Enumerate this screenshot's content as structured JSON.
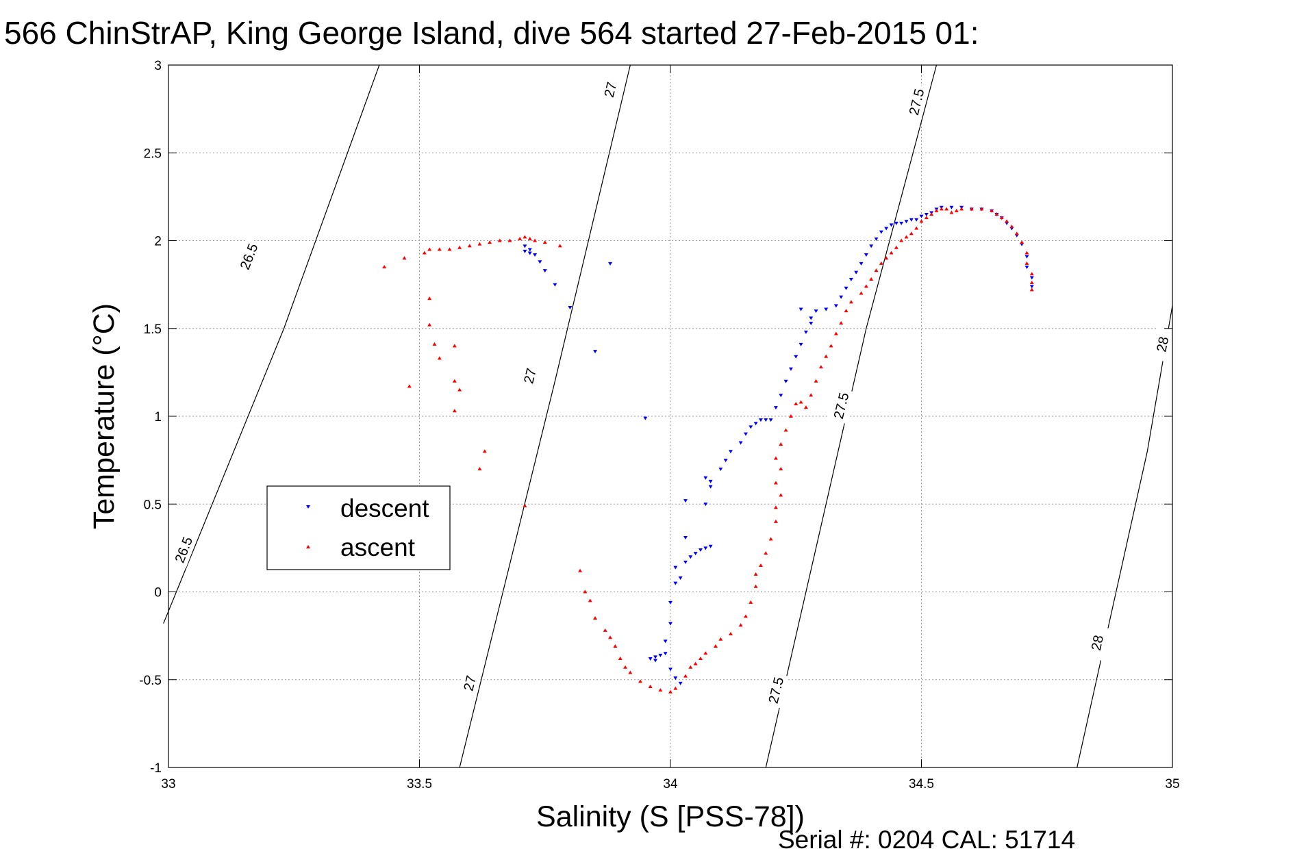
{
  "chart_data": {
    "type": "scatter",
    "title": "566 ChinStrAP, King George Island, dive 564 started 27-Feb-2015 01:",
    "xlabel": "Salinity (S [PSS-78])",
    "ylabel": "Temperature (°C)",
    "footer": "Serial #: 0204  CAL: 51714",
    "xlim": [
      33,
      35
    ],
    "ylim": [
      -1,
      3
    ],
    "xticks": [
      33,
      33.5,
      34,
      34.5,
      35
    ],
    "yticks": [
      -1,
      -0.5,
      0,
      0.5,
      1,
      1.5,
      2,
      2.5,
      3
    ],
    "xtick_labels": [
      "33",
      "33.5",
      "34",
      "34.5",
      "35"
    ],
    "ytick_labels": [
      "-1",
      "-0.5",
      "0",
      "0.5",
      "1",
      "1.5",
      "2",
      "2.5",
      "3"
    ],
    "grid": true,
    "legend": {
      "position": "left-middle",
      "entries": [
        {
          "name": "descent",
          "color": "#0000ff",
          "marker": "triangle-down"
        },
        {
          "name": "ascent",
          "color": "#ff0000",
          "marker": "triangle-up"
        }
      ]
    },
    "contours": [
      {
        "label": "26.5",
        "points": [
          [
            32.99,
            -0.18
          ],
          [
            33.23,
            1.5
          ],
          [
            33.42,
            3.0
          ]
        ],
        "labels_at": [
          [
            33.03,
            0.24
          ],
          [
            33.16,
            1.91
          ]
        ]
      },
      {
        "label": "27",
        "points": [
          [
            33.58,
            -1.0
          ],
          [
            33.77,
            1.2
          ],
          [
            33.92,
            3.0
          ]
        ],
        "labels_at": [
          [
            33.6,
            -0.52
          ],
          [
            33.72,
            1.23
          ],
          [
            33.88,
            2.86
          ]
        ]
      },
      {
        "label": "27.5",
        "points": [
          [
            34.19,
            -1.0
          ],
          [
            34.39,
            1.5
          ],
          [
            34.53,
            3.0
          ]
        ],
        "labels_at": [
          [
            34.21,
            -0.56
          ],
          [
            34.34,
            1.06
          ],
          [
            34.49,
            2.79
          ]
        ]
      },
      {
        "label": "28",
        "points": [
          [
            34.81,
            -1.0
          ],
          [
            34.95,
            0.8
          ],
          [
            35.0,
            1.63
          ]
        ],
        "labels_at": [
          [
            34.85,
            -0.29
          ],
          [
            34.98,
            1.41
          ]
        ]
      }
    ],
    "series": [
      {
        "name": "descent",
        "color": "#0000ff",
        "marker": "triangle-down",
        "points": [
          [
            33.71,
            1.97
          ],
          [
            33.72,
            1.95
          ],
          [
            33.71,
            1.94
          ],
          [
            33.72,
            1.93
          ],
          [
            33.73,
            1.92
          ],
          [
            33.74,
            1.88
          ],
          [
            33.75,
            1.83
          ],
          [
            33.77,
            1.75
          ],
          [
            33.8,
            1.62
          ],
          [
            33.85,
            1.37
          ],
          [
            33.88,
            1.87
          ],
          [
            33.95,
            0.99
          ],
          [
            33.96,
            -0.38
          ],
          [
            33.97,
            -0.37
          ],
          [
            33.98,
            -0.36
          ],
          [
            33.99,
            -0.35
          ],
          [
            33.97,
            -0.39
          ],
          [
            33.99,
            -0.28
          ],
          [
            34.0,
            -0.18
          ],
          [
            34.0,
            -0.06
          ],
          [
            34.01,
            0.05
          ],
          [
            34.01,
            0.14
          ],
          [
            34.0,
            -0.44
          ],
          [
            34.01,
            -0.49
          ],
          [
            34.02,
            -0.52
          ],
          [
            34.02,
            0.08
          ],
          [
            34.03,
            0.17
          ],
          [
            34.03,
            0.31
          ],
          [
            34.04,
            0.2
          ],
          [
            34.05,
            0.22
          ],
          [
            34.06,
            0.24
          ],
          [
            34.07,
            0.25
          ],
          [
            34.08,
            0.26
          ],
          [
            34.03,
            0.52
          ],
          [
            34.07,
            0.5
          ],
          [
            34.08,
            0.6
          ],
          [
            34.07,
            0.65
          ],
          [
            34.08,
            0.63
          ],
          [
            34.1,
            0.7
          ],
          [
            34.11,
            0.75
          ],
          [
            34.12,
            0.8
          ],
          [
            34.14,
            0.85
          ],
          [
            34.15,
            0.9
          ],
          [
            34.16,
            0.94
          ],
          [
            34.17,
            0.96
          ],
          [
            34.18,
            0.98
          ],
          [
            34.19,
            0.98
          ],
          [
            34.2,
            0.98
          ],
          [
            34.21,
            1.05
          ],
          [
            34.22,
            1.12
          ],
          [
            34.23,
            1.2
          ],
          [
            34.24,
            1.27
          ],
          [
            34.25,
            1.34
          ],
          [
            34.26,
            1.41
          ],
          [
            34.27,
            1.48
          ],
          [
            34.28,
            1.53
          ],
          [
            34.28,
            1.56
          ],
          [
            34.26,
            1.61
          ],
          [
            34.29,
            1.6
          ],
          [
            34.31,
            1.61
          ],
          [
            34.33,
            1.63
          ],
          [
            34.34,
            1.68
          ],
          [
            34.35,
            1.73
          ],
          [
            34.36,
            1.78
          ],
          [
            34.37,
            1.82
          ],
          [
            34.38,
            1.87
          ],
          [
            34.39,
            1.92
          ],
          [
            34.4,
            1.97
          ],
          [
            34.41,
            2.01
          ],
          [
            34.42,
            2.05
          ],
          [
            34.43,
            2.07
          ],
          [
            34.44,
            2.09
          ],
          [
            34.45,
            2.1
          ],
          [
            34.46,
            2.1
          ],
          [
            34.47,
            2.11
          ],
          [
            34.48,
            2.12
          ],
          [
            34.49,
            2.12
          ],
          [
            34.5,
            2.14
          ],
          [
            34.51,
            2.15
          ],
          [
            34.52,
            2.16
          ],
          [
            34.53,
            2.18
          ],
          [
            34.54,
            2.19
          ],
          [
            34.56,
            2.19
          ],
          [
            34.58,
            2.19
          ],
          [
            34.6,
            2.18
          ],
          [
            34.62,
            2.18
          ],
          [
            34.64,
            2.17
          ],
          [
            34.65,
            2.15
          ],
          [
            34.66,
            2.13
          ],
          [
            34.67,
            2.1
          ],
          [
            34.68,
            2.07
          ],
          [
            34.69,
            2.03
          ],
          [
            34.7,
            1.98
          ],
          [
            34.71,
            1.91
          ],
          [
            34.71,
            1.85
          ],
          [
            34.72,
            1.79
          ],
          [
            34.72,
            1.74
          ]
        ]
      },
      {
        "name": "ascent",
        "color": "#ff0000",
        "marker": "triangle-up",
        "points": [
          [
            33.43,
            1.85
          ],
          [
            33.47,
            1.9
          ],
          [
            33.48,
            1.17
          ],
          [
            33.51,
            1.93
          ],
          [
            33.52,
            1.95
          ],
          [
            33.54,
            1.95
          ],
          [
            33.56,
            1.95
          ],
          [
            33.58,
            1.96
          ],
          [
            33.6,
            1.97
          ],
          [
            33.62,
            1.98
          ],
          [
            33.64,
            1.99
          ],
          [
            33.66,
            2.0
          ],
          [
            33.68,
            2.0
          ],
          [
            33.7,
            2.01
          ],
          [
            33.71,
            2.02
          ],
          [
            33.72,
            2.01
          ],
          [
            33.73,
            2.0
          ],
          [
            33.75,
            1.99
          ],
          [
            33.78,
            1.97
          ],
          [
            33.52,
            1.52
          ],
          [
            33.52,
            1.67
          ],
          [
            33.53,
            1.41
          ],
          [
            33.54,
            1.33
          ],
          [
            33.57,
            1.4
          ],
          [
            33.57,
            1.2
          ],
          [
            33.58,
            1.15
          ],
          [
            33.57,
            1.03
          ],
          [
            33.63,
            0.8
          ],
          [
            33.62,
            0.7
          ],
          [
            33.71,
            0.49
          ],
          [
            33.82,
            0.12
          ],
          [
            33.83,
            0.0
          ],
          [
            33.84,
            -0.05
          ],
          [
            33.85,
            -0.15
          ],
          [
            33.87,
            -0.22
          ],
          [
            33.88,
            -0.26
          ],
          [
            33.89,
            -0.31
          ],
          [
            33.9,
            -0.38
          ],
          [
            33.91,
            -0.43
          ],
          [
            33.92,
            -0.46
          ],
          [
            33.94,
            -0.51
          ],
          [
            33.96,
            -0.54
          ],
          [
            33.98,
            -0.56
          ],
          [
            34.0,
            -0.57
          ],
          [
            34.01,
            -0.55
          ],
          [
            34.03,
            -0.48
          ],
          [
            34.04,
            -0.43
          ],
          [
            34.05,
            -0.41
          ],
          [
            34.06,
            -0.38
          ],
          [
            34.07,
            -0.35
          ],
          [
            34.09,
            -0.31
          ],
          [
            34.1,
            -0.27
          ],
          [
            34.12,
            -0.24
          ],
          [
            34.14,
            -0.19
          ],
          [
            34.15,
            -0.14
          ],
          [
            34.16,
            -0.06
          ],
          [
            34.17,
            0.03
          ],
          [
            34.17,
            0.1
          ],
          [
            34.18,
            0.15
          ],
          [
            34.19,
            0.22
          ],
          [
            34.2,
            0.3
          ],
          [
            34.21,
            0.4
          ],
          [
            34.21,
            0.48
          ],
          [
            34.22,
            0.55
          ],
          [
            34.21,
            0.62
          ],
          [
            34.22,
            0.7
          ],
          [
            34.21,
            0.76
          ],
          [
            34.22,
            0.84
          ],
          [
            34.23,
            0.92
          ],
          [
            34.24,
            1.0
          ],
          [
            34.25,
            1.07
          ],
          [
            34.26,
            1.08
          ],
          [
            34.27,
            1.05
          ],
          [
            34.28,
            1.12
          ],
          [
            34.29,
            1.2
          ],
          [
            34.3,
            1.28
          ],
          [
            34.31,
            1.34
          ],
          [
            34.32,
            1.4
          ],
          [
            34.33,
            1.47
          ],
          [
            34.34,
            1.53
          ],
          [
            34.35,
            1.6
          ],
          [
            34.36,
            1.65
          ],
          [
            34.38,
            1.7
          ],
          [
            34.39,
            1.74
          ],
          [
            34.4,
            1.78
          ],
          [
            34.41,
            1.83
          ],
          [
            34.42,
            1.87
          ],
          [
            34.43,
            1.9
          ],
          [
            34.44,
            1.93
          ],
          [
            34.45,
            1.96
          ],
          [
            34.46,
            2.0
          ],
          [
            34.47,
            2.02
          ],
          [
            34.48,
            2.04
          ],
          [
            34.49,
            2.07
          ],
          [
            34.5,
            2.11
          ],
          [
            34.51,
            2.13
          ],
          [
            34.52,
            2.15
          ],
          [
            34.53,
            2.17
          ],
          [
            34.54,
            2.18
          ],
          [
            34.55,
            2.18
          ],
          [
            34.56,
            2.16
          ],
          [
            34.57,
            2.17
          ],
          [
            34.58,
            2.18
          ],
          [
            34.6,
            2.18
          ],
          [
            34.62,
            2.18
          ],
          [
            34.64,
            2.17
          ],
          [
            34.65,
            2.15
          ],
          [
            34.66,
            2.13
          ],
          [
            34.67,
            2.11
          ],
          [
            34.68,
            2.08
          ],
          [
            34.69,
            2.04
          ],
          [
            34.7,
            1.99
          ],
          [
            34.71,
            1.93
          ],
          [
            34.71,
            1.87
          ],
          [
            34.72,
            1.81
          ],
          [
            34.72,
            1.76
          ],
          [
            34.72,
            1.72
          ]
        ]
      }
    ]
  }
}
